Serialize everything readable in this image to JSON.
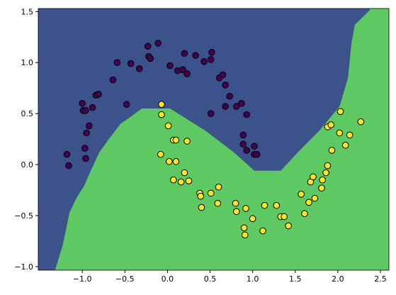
{
  "chart_data": {
    "type": "scatter",
    "xlim": [
      -1.517,
      2.6
    ],
    "ylim": [
      -1.035,
      1.53
    ],
    "xticks": [
      {
        "value": -1,
        "label": "−1.0"
      },
      {
        "value": -0.5,
        "label": "−0.5"
      },
      {
        "value": 0,
        "label": "0.0"
      },
      {
        "value": 0.5,
        "label": "0.5"
      },
      {
        "value": 1,
        "label": "1.0"
      },
      {
        "value": 1.5,
        "label": "1.5"
      },
      {
        "value": 2,
        "label": "2.0"
      },
      {
        "value": 2.5,
        "label": "2.5"
      }
    ],
    "yticks": [
      {
        "value": -1,
        "label": "−1.0"
      },
      {
        "value": -0.5,
        "label": "−0.5"
      },
      {
        "value": 0,
        "label": "0.0"
      },
      {
        "value": 0.5,
        "label": "0.5"
      },
      {
        "value": 1,
        "label": "1.0"
      },
      {
        "value": 1.5,
        "label": "1.5"
      }
    ],
    "background_color": "#3b528b",
    "decision_region": {
      "color": "#5ec962",
      "x": [
        -1.32,
        -1.23,
        -1.15,
        -1.07,
        -0.98,
        -0.9,
        -0.8,
        -0.68,
        -0.55,
        -0.43,
        -0.3,
        0.03,
        0.45,
        0.78,
        1.02,
        1.33,
        1.53,
        1.78,
        2.02,
        2.12,
        2.16,
        2.2,
        2.37,
        2.38,
        2.6,
        2.6
      ],
      "y": [
        -1.035,
        -0.79,
        -0.47,
        -0.33,
        -0.21,
        -0.06,
        0.12,
        0.26,
        0.4,
        0.47,
        0.55,
        0.55,
        0.33,
        0.12,
        -0.06,
        -0.06,
        0.12,
        0.33,
        0.57,
        0.85,
        1.19,
        1.37,
        1.51,
        1.53,
        1.53,
        -1.035
      ]
    },
    "series": [
      {
        "color": "#440154",
        "x": [
          -1.18,
          -1.16,
          -1.0,
          -0.99,
          -0.96,
          -0.97,
          -0.96,
          -0.95,
          -0.92,
          -0.88,
          -0.84,
          -0.81,
          -0.64,
          -0.59,
          -0.48,
          -0.43,
          -0.33,
          -0.23,
          -0.22,
          -0.2,
          -0.11,
          0.03,
          0.12,
          0.18,
          0.2,
          0.23,
          0.33,
          0.43,
          0.51,
          0.52,
          0.51,
          0.61,
          0.65,
          0.68,
          0.73,
          0.68,
          0.81,
          0.87,
          0.93,
          0.89,
          0.89,
          0.93,
          1.02,
          1.02,
          1.05
        ],
        "y": [
          0.1,
          -0.01,
          0.6,
          0.53,
          0.53,
          0.16,
          0.06,
          0.31,
          0.38,
          0.56,
          0.68,
          0.69,
          0.83,
          1.0,
          0.59,
          0.99,
          0.94,
          1.16,
          1.06,
          1.04,
          1.19,
          0.97,
          0.92,
          0.93,
          1.09,
          0.89,
          1.07,
          1.01,
          1.03,
          1.1,
          0.5,
          0.85,
          0.88,
          0.78,
          0.67,
          0.57,
          0.57,
          0.6,
          0.49,
          0.29,
          0.2,
          0.14,
          0.18,
          0.1,
          0.1
        ]
      },
      {
        "color": "#fde725",
        "x": [
          -0.07,
          -0.07,
          0.01,
          -0.08,
          0.02,
          0.07,
          0.1,
          0.1,
          0.07,
          0.16,
          0.2,
          0.23,
          0.25,
          0.38,
          0.39,
          0.4,
          0.51,
          0.59,
          0.6,
          0.8,
          0.81,
          0.92,
          0.9,
          0.91,
          1.0,
          1.12,
          1.14,
          1.28,
          1.33,
          1.37,
          1.42,
          1.57,
          1.61,
          1.66,
          1.68,
          1.71,
          1.73,
          1.81,
          1.82,
          1.86,
          1.88,
          1.93,
          1.88,
          1.92,
          2.02,
          2.03,
          2.09,
          2.14,
          2.27
        ],
        "y": [
          0.59,
          0.49,
          0.38,
          0.1,
          0.03,
          0.24,
          0.24,
          0.03,
          -0.15,
          -0.17,
          -0.08,
          0.23,
          -0.16,
          -0.28,
          -0.31,
          -0.42,
          -0.28,
          -0.38,
          -0.22,
          -0.38,
          -0.46,
          -0.43,
          -0.62,
          -0.69,
          -0.53,
          -0.65,
          -0.4,
          -0.4,
          -0.51,
          -0.51,
          -0.6,
          -0.29,
          -0.48,
          -0.37,
          -0.17,
          -0.12,
          -0.33,
          -0.23,
          -0.15,
          -0.08,
          -0.01,
          0.14,
          0.37,
          0.39,
          0.31,
          0.52,
          0.19,
          0.29,
          0.42
        ]
      }
    ]
  }
}
